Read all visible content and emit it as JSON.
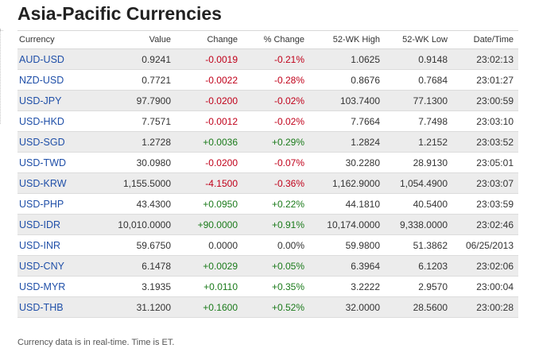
{
  "title": "Asia-Pacific Currencies",
  "columns": [
    "Currency",
    "Value",
    "Change",
    "% Change",
    "52-WK High",
    "52-WK Low",
    "Date/Time"
  ],
  "rows": [
    {
      "currency": "AUD-USD",
      "value": "0.9241",
      "change": "-0.0019",
      "pct_change": "-0.21%",
      "high52": "1.0625",
      "low52": "0.9148",
      "datetime": "23:02:13",
      "direction": "neg"
    },
    {
      "currency": "NZD-USD",
      "value": "0.7721",
      "change": "-0.0022",
      "pct_change": "-0.28%",
      "high52": "0.8676",
      "low52": "0.7684",
      "datetime": "23:01:27",
      "direction": "neg"
    },
    {
      "currency": "USD-JPY",
      "value": "97.7900",
      "change": "-0.0200",
      "pct_change": "-0.02%",
      "high52": "103.7400",
      "low52": "77.1300",
      "datetime": "23:00:59",
      "direction": "neg"
    },
    {
      "currency": "USD-HKD",
      "value": "7.7571",
      "change": "-0.0012",
      "pct_change": "-0.02%",
      "high52": "7.7664",
      "low52": "7.7498",
      "datetime": "23:03:10",
      "direction": "neg"
    },
    {
      "currency": "USD-SGD",
      "value": "1.2728",
      "change": "+0.0036",
      "pct_change": "+0.29%",
      "high52": "1.2824",
      "low52": "1.2152",
      "datetime": "23:03:52",
      "direction": "pos"
    },
    {
      "currency": "USD-TWD",
      "value": "30.0980",
      "change": "-0.0200",
      "pct_change": "-0.07%",
      "high52": "30.2280",
      "low52": "28.9130",
      "datetime": "23:05:01",
      "direction": "neg"
    },
    {
      "currency": "USD-KRW",
      "value": "1,155.5000",
      "change": "-4.1500",
      "pct_change": "-0.36%",
      "high52": "1,162.9000",
      "low52": "1,054.4900",
      "datetime": "23:03:07",
      "direction": "neg"
    },
    {
      "currency": "USD-PHP",
      "value": "43.4300",
      "change": "+0.0950",
      "pct_change": "+0.22%",
      "high52": "44.1810",
      "low52": "40.5400",
      "datetime": "23:03:59",
      "direction": "pos"
    },
    {
      "currency": "USD-IDR",
      "value": "10,010.0000",
      "change": "+90.0000",
      "pct_change": "+0.91%",
      "high52": "10,174.0000",
      "low52": "9,338.0000",
      "datetime": "23:02:46",
      "direction": "pos"
    },
    {
      "currency": "USD-INR",
      "value": "59.6750",
      "change": "0.0000",
      "pct_change": "0.00%",
      "high52": "59.9800",
      "low52": "51.3862",
      "datetime": "06/25/2013",
      "direction": "flat"
    },
    {
      "currency": "USD-CNY",
      "value": "6.1478",
      "change": "+0.0029",
      "pct_change": "+0.05%",
      "high52": "6.3964",
      "low52": "6.1203",
      "datetime": "23:02:06",
      "direction": "pos"
    },
    {
      "currency": "USD-MYR",
      "value": "3.1935",
      "change": "+0.0110",
      "pct_change": "+0.35%",
      "high52": "3.2222",
      "low52": "2.9570",
      "datetime": "23:00:04",
      "direction": "pos"
    },
    {
      "currency": "USD-THB",
      "value": "31.1200",
      "change": "+0.1600",
      "pct_change": "+0.52%",
      "high52": "32.0000",
      "low52": "28.5600",
      "datetime": "23:00:28",
      "direction": "pos"
    }
  ],
  "footer": "Currency data is in real-time. Time is ET.",
  "colors": {
    "link": "#1f4fa8",
    "negative": "#c0001a",
    "positive": "#1a7a1a",
    "stripe": "#ececec"
  }
}
